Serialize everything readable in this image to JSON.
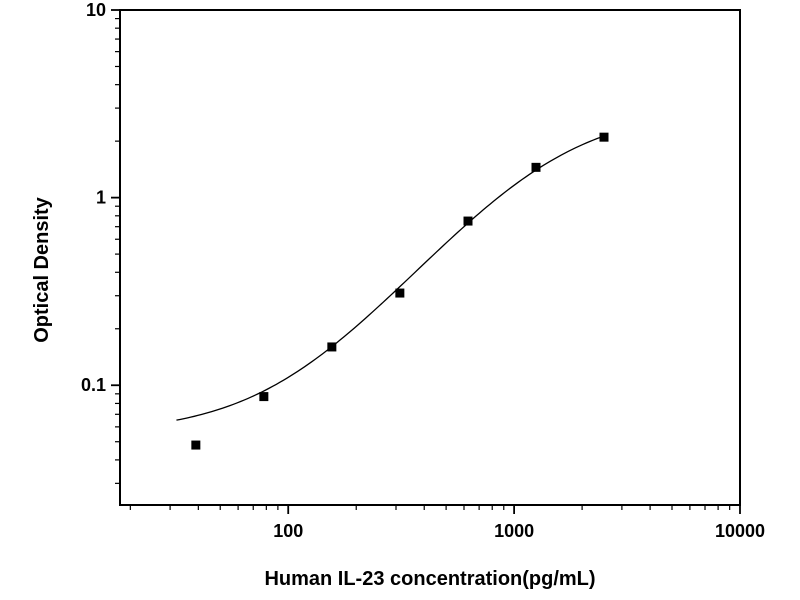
{
  "chart_data": {
    "type": "scatter",
    "title": "",
    "xlabel": "Human IL-23 concentration(pg/mL)",
    "ylabel": "Optical Density",
    "x_scale": "log",
    "y_scale": "log",
    "xlim": [
      18,
      10000
    ],
    "ylim": [
      0.023,
      10
    ],
    "x_major_ticks": [
      100,
      1000,
      10000
    ],
    "y_major_ticks": [
      0.1,
      1,
      10
    ],
    "x_tick_labels": [
      "100",
      "1000",
      "10000"
    ],
    "y_tick_labels": [
      "0.1",
      "1",
      "10"
    ],
    "grid": false,
    "legend": "none",
    "frame": "box",
    "marker": {
      "shape": "square",
      "color": "#000000",
      "size": 8
    },
    "line_color": "#000000",
    "points": [
      {
        "x": 39,
        "y": 0.048
      },
      {
        "x": 78,
        "y": 0.087
      },
      {
        "x": 156,
        "y": 0.16
      },
      {
        "x": 312,
        "y": 0.31
      },
      {
        "x": 625,
        "y": 0.75
      },
      {
        "x": 1250,
        "y": 1.45
      },
      {
        "x": 2500,
        "y": 2.1
      }
    ],
    "fit_curve": {
      "model": "4PL",
      "A": 0.055,
      "B": 1.5,
      "C": 1400,
      "D": 3.0,
      "x_start": 32,
      "x_end": 2500
    }
  }
}
